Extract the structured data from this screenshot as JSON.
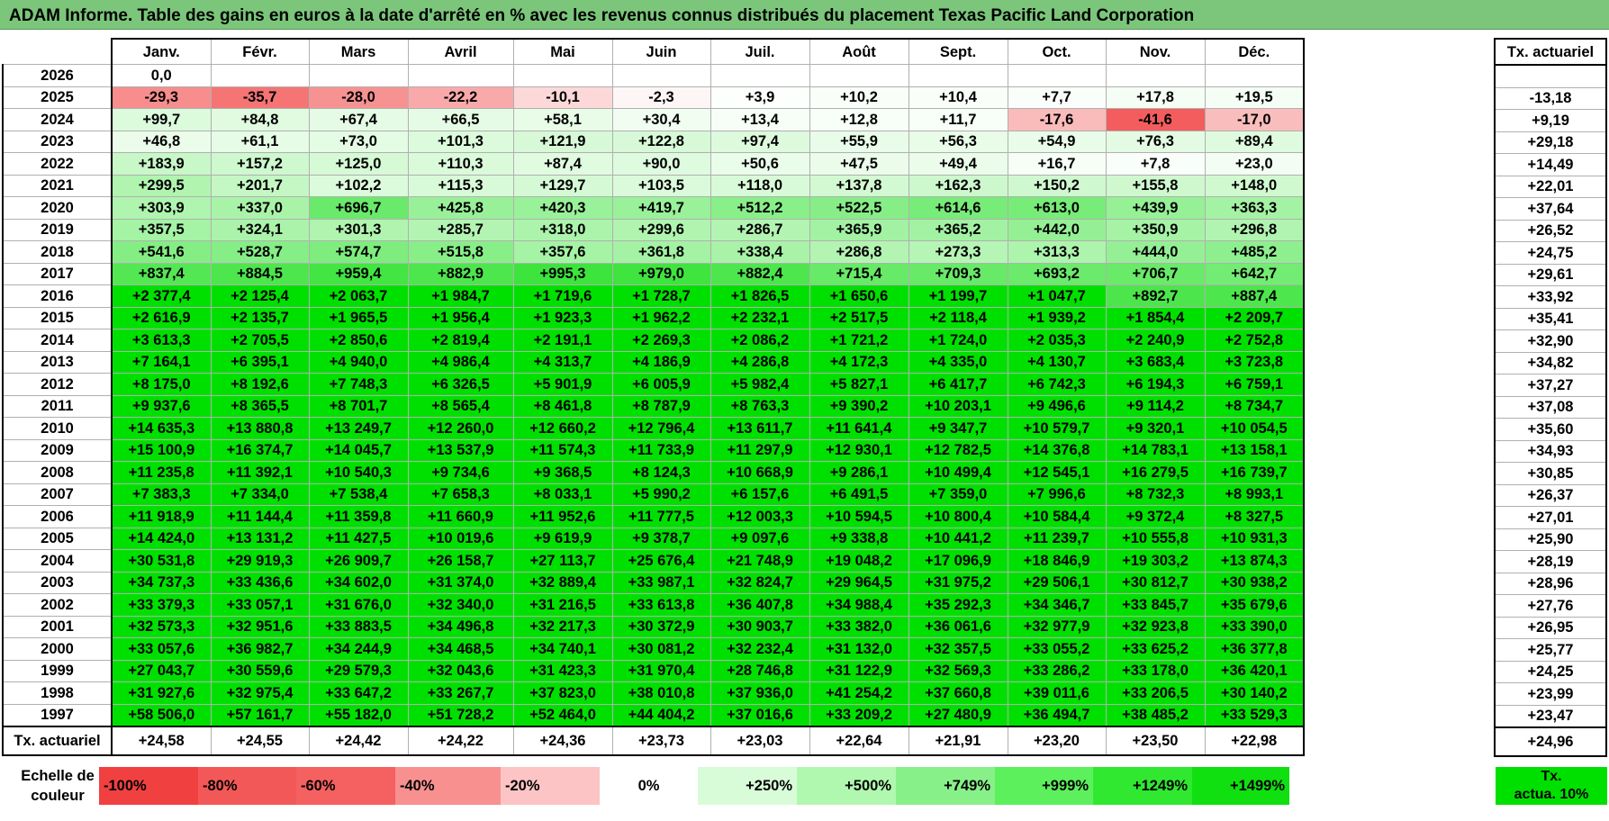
{
  "title": "ADAM Informe. Table des gains en euros à la date d'arrêté en % avec les revenus connus distribués du placement Texas Pacific Land Corporation",
  "months": [
    "Janv.",
    "Févr.",
    "Mars",
    "Avril",
    "Mai",
    "Juin",
    "Juil.",
    "Août",
    "Sept.",
    "Oct.",
    "Nov.",
    "Déc."
  ],
  "actuarial_header": "Tx. actuariel",
  "rows": [
    {
      "year": "2026",
      "values": [
        "0,0",
        "",
        "",
        "",
        "",
        "",
        "",
        "",
        "",
        "",
        "",
        ""
      ],
      "actuarial": ""
    },
    {
      "year": "2025",
      "values": [
        "-29,3",
        "-35,7",
        "-28,0",
        "-22,2",
        "-10,1",
        "-2,3",
        "+3,9",
        "+10,2",
        "+10,4",
        "+7,7",
        "+17,8",
        "+19,5"
      ],
      "actuarial": "-13,18"
    },
    {
      "year": "2024",
      "values": [
        "+99,7",
        "+84,8",
        "+67,4",
        "+66,5",
        "+58,1",
        "+30,4",
        "+13,4",
        "+12,8",
        "+11,7",
        "-17,6",
        "-41,6",
        "-17,0"
      ],
      "actuarial": "+9,19"
    },
    {
      "year": "2023",
      "values": [
        "+46,8",
        "+61,1",
        "+73,0",
        "+101,3",
        "+121,9",
        "+122,8",
        "+97,4",
        "+55,9",
        "+56,3",
        "+54,9",
        "+76,3",
        "+89,4"
      ],
      "actuarial": "+29,18"
    },
    {
      "year": "2022",
      "values": [
        "+183,9",
        "+157,2",
        "+125,0",
        "+110,3",
        "+87,4",
        "+90,0",
        "+50,6",
        "+47,5",
        "+49,4",
        "+16,7",
        "+7,8",
        "+23,0"
      ],
      "actuarial": "+14,49"
    },
    {
      "year": "2021",
      "values": [
        "+299,5",
        "+201,7",
        "+102,2",
        "+115,3",
        "+129,7",
        "+103,5",
        "+118,0",
        "+137,8",
        "+162,3",
        "+150,2",
        "+155,8",
        "+148,0"
      ],
      "actuarial": "+22,01"
    },
    {
      "year": "2020",
      "values": [
        "+303,9",
        "+337,0",
        "+696,7",
        "+425,8",
        "+420,3",
        "+419,7",
        "+512,2",
        "+522,5",
        "+614,6",
        "+613,0",
        "+439,9",
        "+363,3"
      ],
      "actuarial": "+37,64"
    },
    {
      "year": "2019",
      "values": [
        "+357,5",
        "+324,1",
        "+301,3",
        "+285,7",
        "+318,0",
        "+299,6",
        "+286,7",
        "+365,9",
        "+365,2",
        "+442,0",
        "+350,9",
        "+296,8"
      ],
      "actuarial": "+26,52"
    },
    {
      "year": "2018",
      "values": [
        "+541,6",
        "+528,7",
        "+574,7",
        "+515,8",
        "+357,6",
        "+361,8",
        "+338,4",
        "+286,8",
        "+273,3",
        "+313,3",
        "+444,0",
        "+485,2"
      ],
      "actuarial": "+24,75"
    },
    {
      "year": "2017",
      "values": [
        "+837,4",
        "+884,5",
        "+959,4",
        "+882,9",
        "+995,3",
        "+979,0",
        "+882,4",
        "+715,4",
        "+709,3",
        "+693,2",
        "+706,7",
        "+642,7"
      ],
      "actuarial": "+29,61"
    },
    {
      "year": "2016",
      "values": [
        "+2 377,4",
        "+2 125,4",
        "+2 063,7",
        "+1 984,7",
        "+1 719,6",
        "+1 728,7",
        "+1 826,5",
        "+1 650,6",
        "+1 199,7",
        "+1 047,7",
        "+892,7",
        "+887,4"
      ],
      "actuarial": "+33,92"
    },
    {
      "year": "2015",
      "values": [
        "+2 616,9",
        "+2 135,7",
        "+1 965,5",
        "+1 956,4",
        "+1 923,3",
        "+1 962,2",
        "+2 232,1",
        "+2 517,5",
        "+2 118,4",
        "+1 939,2",
        "+1 854,4",
        "+2 209,7"
      ],
      "actuarial": "+35,41"
    },
    {
      "year": "2014",
      "values": [
        "+3 613,3",
        "+2 705,5",
        "+2 850,6",
        "+2 819,4",
        "+2 191,1",
        "+2 269,3",
        "+2 086,2",
        "+1 721,2",
        "+1 724,0",
        "+2 035,3",
        "+2 240,9",
        "+2 752,8"
      ],
      "actuarial": "+32,90"
    },
    {
      "year": "2013",
      "values": [
        "+7 164,1",
        "+6 395,1",
        "+4 940,0",
        "+4 986,4",
        "+4 313,7",
        "+4 186,9",
        "+4 286,8",
        "+4 172,3",
        "+4 335,0",
        "+4 130,7",
        "+3 683,4",
        "+3 723,8"
      ],
      "actuarial": "+34,82"
    },
    {
      "year": "2012",
      "values": [
        "+8 175,0",
        "+8 192,6",
        "+7 748,3",
        "+6 326,5",
        "+5 901,9",
        "+6 005,9",
        "+5 982,4",
        "+5 827,1",
        "+6 417,7",
        "+6 742,3",
        "+6 194,3",
        "+6 759,1"
      ],
      "actuarial": "+37,27"
    },
    {
      "year": "2011",
      "values": [
        "+9 937,6",
        "+8 365,5",
        "+8 701,7",
        "+8 565,4",
        "+8 461,8",
        "+8 787,9",
        "+8 763,3",
        "+9 390,2",
        "+10 203,1",
        "+9 496,6",
        "+9 114,2",
        "+8 734,7"
      ],
      "actuarial": "+37,08"
    },
    {
      "year": "2010",
      "values": [
        "+14 635,3",
        "+13 880,8",
        "+13 249,7",
        "+12 260,0",
        "+12 660,2",
        "+12 796,4",
        "+13 611,7",
        "+11 641,4",
        "+9 347,7",
        "+10 579,7",
        "+9 320,1",
        "+10 054,5"
      ],
      "actuarial": "+35,60"
    },
    {
      "year": "2009",
      "values": [
        "+15 100,9",
        "+16 374,7",
        "+14 045,7",
        "+13 537,9",
        "+11 574,3",
        "+11 733,9",
        "+11 297,9",
        "+12 930,1",
        "+12 782,5",
        "+14 376,8",
        "+14 783,1",
        "+13 158,1"
      ],
      "actuarial": "+34,93"
    },
    {
      "year": "2008",
      "values": [
        "+11 235,8",
        "+11 392,1",
        "+10 540,3",
        "+9 734,6",
        "+9 368,5",
        "+8 124,3",
        "+10 668,9",
        "+9 286,1",
        "+10 499,4",
        "+12 545,1",
        "+16 279,5",
        "+16 739,7"
      ],
      "actuarial": "+30,85"
    },
    {
      "year": "2007",
      "values": [
        "+7 383,3",
        "+7 334,0",
        "+7 538,4",
        "+7 658,3",
        "+8 033,1",
        "+5 990,2",
        "+6 157,6",
        "+6 491,5",
        "+7 359,0",
        "+7 996,6",
        "+8 732,3",
        "+8 993,1"
      ],
      "actuarial": "+26,37"
    },
    {
      "year": "2006",
      "values": [
        "+11 918,9",
        "+11 144,4",
        "+11 359,8",
        "+11 660,9",
        "+11 952,6",
        "+11 777,5",
        "+12 003,3",
        "+10 594,5",
        "+10 800,4",
        "+10 584,4",
        "+9 372,4",
        "+8 327,5"
      ],
      "actuarial": "+27,01"
    },
    {
      "year": "2005",
      "values": [
        "+14 424,0",
        "+13 131,2",
        "+11 427,5",
        "+10 019,6",
        "+9 619,9",
        "+9 378,7",
        "+9 097,6",
        "+9 338,8",
        "+10 441,2",
        "+11 239,7",
        "+10 555,8",
        "+10 931,3"
      ],
      "actuarial": "+25,90"
    },
    {
      "year": "2004",
      "values": [
        "+30 531,8",
        "+29 919,3",
        "+26 909,7",
        "+26 158,7",
        "+27 113,7",
        "+25 676,4",
        "+21 748,9",
        "+19 048,2",
        "+17 096,9",
        "+18 846,9",
        "+19 303,2",
        "+13 874,3"
      ],
      "actuarial": "+28,19"
    },
    {
      "year": "2003",
      "values": [
        "+34 737,3",
        "+33 436,6",
        "+34 602,0",
        "+31 374,0",
        "+32 889,4",
        "+33 987,1",
        "+32 824,7",
        "+29 964,5",
        "+31 975,2",
        "+29 506,1",
        "+30 812,7",
        "+30 938,2"
      ],
      "actuarial": "+28,96"
    },
    {
      "year": "2002",
      "values": [
        "+33 379,3",
        "+33 057,1",
        "+31 676,0",
        "+32 340,0",
        "+31 216,5",
        "+33 613,8",
        "+36 407,8",
        "+34 988,4",
        "+35 292,3",
        "+34 346,7",
        "+33 845,7",
        "+35 679,6"
      ],
      "actuarial": "+27,76"
    },
    {
      "year": "2001",
      "values": [
        "+32 573,3",
        "+32 951,6",
        "+33 883,5",
        "+34 496,8",
        "+32 217,3",
        "+30 372,9",
        "+30 903,7",
        "+33 382,0",
        "+36 061,6",
        "+32 977,9",
        "+32 923,8",
        "+33 390,0"
      ],
      "actuarial": "+26,95"
    },
    {
      "year": "2000",
      "values": [
        "+33 057,6",
        "+36 982,7",
        "+34 244,9",
        "+34 468,5",
        "+34 740,1",
        "+30 081,2",
        "+32 232,4",
        "+31 132,0",
        "+32 357,5",
        "+33 055,2",
        "+33 625,2",
        "+36 377,8"
      ],
      "actuarial": "+25,77"
    },
    {
      "year": "1999",
      "values": [
        "+27 043,7",
        "+30 559,6",
        "+29 579,3",
        "+32 043,6",
        "+31 423,3",
        "+31 970,4",
        "+28 746,8",
        "+31 122,9",
        "+32 569,3",
        "+33 286,2",
        "+33 178,0",
        "+36 420,1"
      ],
      "actuarial": "+24,25"
    },
    {
      "year": "1998",
      "values": [
        "+31 927,6",
        "+32 975,4",
        "+33 647,2",
        "+33 267,7",
        "+37 823,0",
        "+38 010,8",
        "+37 936,0",
        "+41 254,2",
        "+37 660,8",
        "+39 011,6",
        "+33 206,5",
        "+30 140,2"
      ],
      "actuarial": "+23,99"
    },
    {
      "year": "1997",
      "values": [
        "+58 506,0",
        "+57 161,7",
        "+55 182,0",
        "+51 728,2",
        "+52 464,0",
        "+44 404,2",
        "+37 016,6",
        "+33 209,2",
        "+27 480,9",
        "+36 494,7",
        "+38 485,2",
        "+33 529,3"
      ],
      "actuarial": "+23,47"
    }
  ],
  "tx_row": {
    "label": "Tx. actuariel",
    "values": [
      "+24,58",
      "+24,55",
      "+24,42",
      "+24,22",
      "+24,36",
      "+23,73",
      "+23,03",
      "+22,64",
      "+21,91",
      "+23,20",
      "+23,50",
      "+22,98"
    ],
    "actuarial": "+24,96"
  },
  "legend": {
    "label_line1": "Echelle de",
    "label_line2": "couleur",
    "items": [
      {
        "text": "-100%",
        "color": "#f04040",
        "align": "left"
      },
      {
        "text": "-80%",
        "color": "#f35858",
        "align": "left"
      },
      {
        "text": "-60%",
        "color": "#f56060",
        "align": "left"
      },
      {
        "text": "-40%",
        "color": "#f89090",
        "align": "left"
      },
      {
        "text": "-20%",
        "color": "#fcc4c4",
        "align": "left"
      },
      {
        "text": "0%",
        "color": "#ffffff",
        "align": "center"
      },
      {
        "text": "+250%",
        "color": "#d8fcd8",
        "align": "right"
      },
      {
        "text": "+500%",
        "color": "#b0f8b0",
        "align": "right"
      },
      {
        "text": "+749%",
        "color": "#88f088",
        "align": "right"
      },
      {
        "text": "+999%",
        "color": "#5cf05c",
        "align": "right"
      },
      {
        "text": "+1249%",
        "color": "#30e830",
        "align": "right"
      },
      {
        "text": "+1499%",
        "color": "#10e010",
        "align": "right"
      }
    ],
    "tx_line1": "Tx.",
    "tx_line2": "actua. 10%"
  },
  "colors": {
    "title_bg": "#7bc67b",
    "max_green": "#00e000",
    "max_red": "#f04040"
  }
}
